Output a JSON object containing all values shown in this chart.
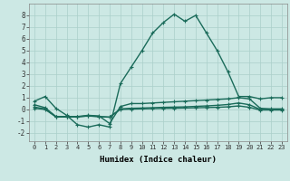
{
  "title": "",
  "xlabel": "Humidex (Indice chaleur)",
  "xlim": [
    -0.5,
    23.5
  ],
  "ylim": [
    -2.7,
    9.0
  ],
  "yticks": [
    -2,
    -1,
    0,
    1,
    2,
    3,
    4,
    5,
    6,
    7,
    8
  ],
  "xticks": [
    0,
    1,
    2,
    3,
    4,
    5,
    6,
    7,
    8,
    9,
    10,
    11,
    12,
    13,
    14,
    15,
    16,
    17,
    18,
    19,
    20,
    21,
    22,
    23
  ],
  "bg_color": "#cce8e4",
  "line_color": "#1a6b5a",
  "grid_color": "#aacfca",
  "series1": [
    0.7,
    1.1,
    0.1,
    -0.5,
    -1.3,
    -1.5,
    -1.3,
    -1.5,
    2.2,
    3.6,
    5.0,
    6.5,
    7.4,
    8.1,
    7.5,
    8.0,
    6.5,
    5.0,
    3.2,
    1.1,
    1.1,
    0.9,
    1.0,
    1.0
  ],
  "series2": [
    0.4,
    0.15,
    -0.6,
    -0.6,
    -0.6,
    -0.5,
    -0.55,
    -1.2,
    0.25,
    0.5,
    0.5,
    0.55,
    0.6,
    0.65,
    0.7,
    0.75,
    0.8,
    0.85,
    0.9,
    1.0,
    0.9,
    0.1,
    0.05,
    0.05
  ],
  "series3": [
    0.2,
    0.05,
    -0.62,
    -0.63,
    -0.62,
    -0.55,
    -0.6,
    -0.65,
    0.05,
    0.1,
    0.12,
    0.15,
    0.18,
    0.2,
    0.22,
    0.26,
    0.3,
    0.35,
    0.42,
    0.55,
    0.4,
    0.0,
    0.0,
    0.0
  ],
  "series4": [
    0.1,
    0.0,
    -0.63,
    -0.64,
    -0.63,
    -0.56,
    -0.61,
    -0.66,
    0.0,
    0.03,
    0.05,
    0.07,
    0.09,
    0.1,
    0.12,
    0.14,
    0.16,
    0.18,
    0.22,
    0.3,
    0.18,
    -0.05,
    -0.05,
    -0.05
  ]
}
